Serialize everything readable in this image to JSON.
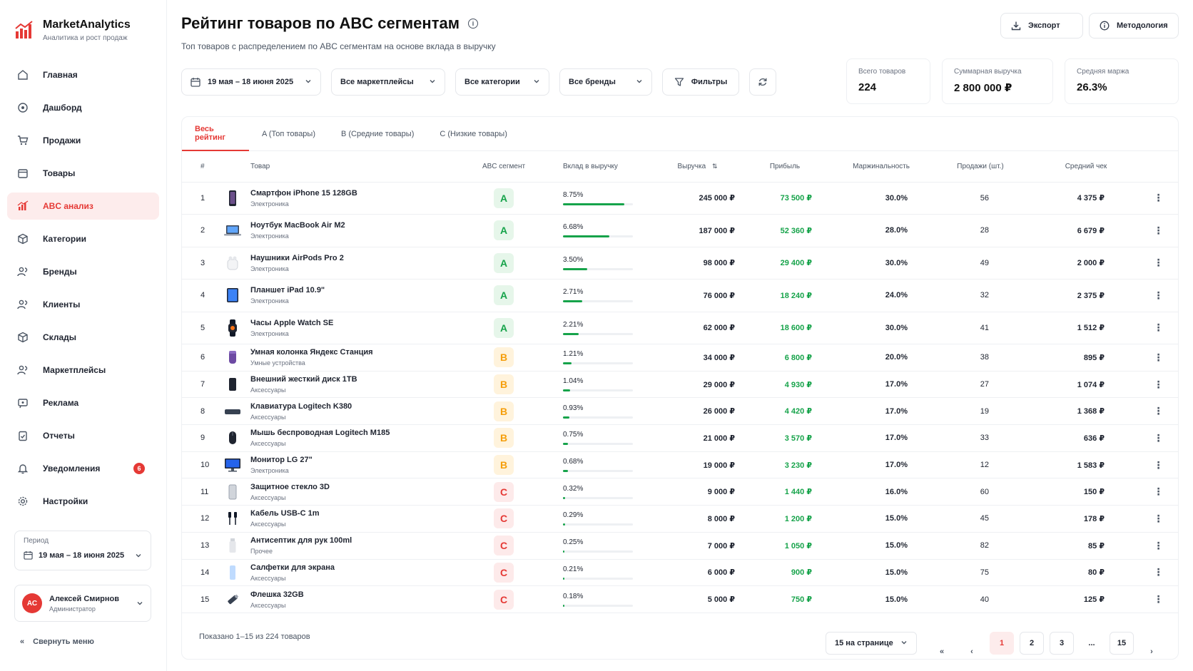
{
  "app": {
    "name": "MarketAnalytics",
    "tagline": "Аналитика и рост продаж"
  },
  "sidebar": {
    "items": [
      {
        "label": "Главная",
        "icon": "home-icon",
        "active": false
      },
      {
        "label": "Дашборд",
        "icon": "dashboard-icon",
        "active": false
      },
      {
        "label": "Продажи",
        "icon": "cart-icon",
        "active": false
      },
      {
        "label": "Товары",
        "icon": "calendar-icon",
        "active": false
      },
      {
        "label": "ABC анализ",
        "icon": "bar-chart-icon",
        "active": true
      },
      {
        "label": "Категории",
        "icon": "box-icon",
        "active": false
      },
      {
        "label": "Бренды",
        "icon": "users-icon",
        "active": false
      },
      {
        "label": "Клиенты",
        "icon": "users-icon",
        "active": false
      },
      {
        "label": "Склады",
        "icon": "box-icon",
        "active": false
      },
      {
        "label": "Маркетплейсы",
        "icon": "users-icon",
        "active": false
      },
      {
        "label": "Реклама",
        "icon": "megaphone-icon",
        "active": false
      },
      {
        "label": "Отчеты",
        "icon": "clipboard-icon",
        "active": false
      },
      {
        "label": "Уведомления",
        "icon": "bell-icon",
        "active": false,
        "badge": "6"
      },
      {
        "label": "Настройки",
        "icon": "gear-icon",
        "active": false
      }
    ],
    "period": {
      "label": "Период",
      "value": "19 мая – 18 июня 2025"
    },
    "user": {
      "initials": "АС",
      "name": "Алексей Смирнов",
      "role": "Администратор"
    },
    "collapse_label": "Свернуть меню"
  },
  "header": {
    "title": "Рейтинг товаров по ABC сегментам",
    "subtitle": "Топ товаров с распределением по ABC сегментам на основе вклада в выручку",
    "export_label": "Экспорт",
    "methodology_label": "Методология"
  },
  "filters": {
    "date": "19 мая – 18 июня 2025",
    "marketplaces": "Все маркетплейсы",
    "categories": "Все категории",
    "brands": "Все бренды",
    "filters_label": "Фильтры"
  },
  "stats": [
    {
      "label": "Всего товаров",
      "value": "224"
    },
    {
      "label": "Суммарная выручка",
      "value": "2 800 000 ₽"
    },
    {
      "label": "Средняя маржа",
      "value": "26.3%"
    }
  ],
  "tabs": [
    "Весь рейтинг",
    "A (Топ товары)",
    "B (Средние товары)",
    "C (Низкие товары)"
  ],
  "table": {
    "columns": [
      "#",
      "Товар",
      "ABC сегмент",
      "Вклад в выручку",
      "Выручка",
      "Прибыль",
      "Маржинальность",
      "Продажи (шт.)",
      "Средний чек"
    ],
    "rows": [
      {
        "num": "1",
        "name": "Смартфон iPhone 15 128GB",
        "category": "Электроника",
        "segment": "A",
        "share": "8.75%",
        "share_pct": 8.75,
        "revenue": "245 000 ₽",
        "profit": "73 500 ₽",
        "margin": "30.0%",
        "sales": "56",
        "avg": "4 375 ₽",
        "icon": "phone-icon"
      },
      {
        "num": "2",
        "name": "Ноутбук MacBook Air M2",
        "category": "Электроника",
        "segment": "A",
        "share": "6.68%",
        "share_pct": 6.68,
        "revenue": "187 000 ₽",
        "profit": "52 360 ₽",
        "margin": "28.0%",
        "sales": "28",
        "avg": "6 679 ₽",
        "icon": "laptop-icon"
      },
      {
        "num": "3",
        "name": "Наушники AirPods Pro 2",
        "category": "Электроника",
        "segment": "A",
        "share": "3.50%",
        "share_pct": 3.5,
        "revenue": "98 000 ₽",
        "profit": "29 400 ₽",
        "margin": "30.0%",
        "sales": "49",
        "avg": "2 000 ₽",
        "icon": "earbuds-icon"
      },
      {
        "num": "4",
        "name": "Планшет iPad 10.9\"",
        "category": "Электроника",
        "segment": "A",
        "share": "2.71%",
        "share_pct": 2.71,
        "revenue": "76 000 ₽",
        "profit": "18 240 ₽",
        "margin": "24.0%",
        "sales": "32",
        "avg": "2 375 ₽",
        "icon": "tablet-icon"
      },
      {
        "num": "5",
        "name": "Часы Apple Watch SE",
        "category": "Электроника",
        "segment": "A",
        "share": "2.21%",
        "share_pct": 2.21,
        "revenue": "62 000 ₽",
        "profit": "18 600 ₽",
        "margin": "30.0%",
        "sales": "41",
        "avg": "1 512 ₽",
        "icon": "watch-icon"
      },
      {
        "num": "6",
        "name": "Умная колонка Яндекс Станция",
        "category": "Умные устройства",
        "segment": "B",
        "share": "1.21%",
        "share_pct": 1.21,
        "revenue": "34 000 ₽",
        "profit": "6 800 ₽",
        "margin": "20.0%",
        "sales": "38",
        "avg": "895 ₽",
        "icon": "speaker-icon"
      },
      {
        "num": "7",
        "name": "Внешний жесткий диск 1TB",
        "category": "Аксессуары",
        "segment": "B",
        "share": "1.04%",
        "share_pct": 1.04,
        "revenue": "29 000 ₽",
        "profit": "4 930 ₽",
        "margin": "17.0%",
        "sales": "27",
        "avg": "1 074 ₽",
        "icon": "hdd-icon"
      },
      {
        "num": "8",
        "name": "Клавиатура Logitech K380",
        "category": "Аксессуары",
        "segment": "B",
        "share": "0.93%",
        "share_pct": 0.93,
        "revenue": "26 000 ₽",
        "profit": "4 420 ₽",
        "margin": "17.0%",
        "sales": "19",
        "avg": "1 368 ₽",
        "icon": "keyboard-icon"
      },
      {
        "num": "9",
        "name": "Мышь беспроводная Logitech M185",
        "category": "Аксессуары",
        "segment": "B",
        "share": "0.75%",
        "share_pct": 0.75,
        "revenue": "21 000 ₽",
        "profit": "3 570 ₽",
        "margin": "17.0%",
        "sales": "33",
        "avg": "636 ₽",
        "icon": "mouse-icon"
      },
      {
        "num": "10",
        "name": "Монитор LG 27\"",
        "category": "Электроника",
        "segment": "B",
        "share": "0.68%",
        "share_pct": 0.68,
        "revenue": "19 000 ₽",
        "profit": "3 230 ₽",
        "margin": "17.0%",
        "sales": "12",
        "avg": "1 583 ₽",
        "icon": "monitor-icon"
      },
      {
        "num": "11",
        "name": "Защитное стекло 3D",
        "category": "Аксессуары",
        "segment": "C",
        "share": "0.32%",
        "share_pct": 0.32,
        "revenue": "9 000 ₽",
        "profit": "1 440 ₽",
        "margin": "16.0%",
        "sales": "60",
        "avg": "150 ₽",
        "icon": "glass-icon"
      },
      {
        "num": "12",
        "name": "Кабель USB-C 1m",
        "category": "Аксессуары",
        "segment": "C",
        "share": "0.29%",
        "share_pct": 0.29,
        "revenue": "8 000 ₽",
        "profit": "1 200 ₽",
        "margin": "15.0%",
        "sales": "45",
        "avg": "178 ₽",
        "icon": "cable-icon"
      },
      {
        "num": "13",
        "name": "Антисептик для рук 100ml",
        "category": "Прочее",
        "segment": "C",
        "share": "0.25%",
        "share_pct": 0.25,
        "revenue": "7 000 ₽",
        "profit": "1 050 ₽",
        "margin": "15.0%",
        "sales": "82",
        "avg": "85 ₽",
        "icon": "bottle-icon"
      },
      {
        "num": "14",
        "name": "Салфетки для экрана",
        "category": "Аксессуары",
        "segment": "C",
        "share": "0.21%",
        "share_pct": 0.21,
        "revenue": "6 000 ₽",
        "profit": "900 ₽",
        "margin": "15.0%",
        "sales": "75",
        "avg": "80 ₽",
        "icon": "wipes-icon"
      },
      {
        "num": "15",
        "name": "Флешка 32GB",
        "category": "Аксессуары",
        "segment": "C",
        "share": "0.18%",
        "share_pct": 0.18,
        "revenue": "5 000 ₽",
        "profit": "750 ₽",
        "margin": "15.0%",
        "sales": "40",
        "avg": "125 ₽",
        "icon": "usb-stick-icon"
      }
    ]
  },
  "footer": {
    "shown_text": "Показано 1–15 из 224 товаров",
    "per_page": "15 на странице",
    "pages": [
      "1",
      "2",
      "3",
      "...",
      "15"
    ],
    "current_page": "1"
  },
  "colors": {
    "accent": "#e53935",
    "positive": "#16a34a",
    "segment_b": "#f59e0b"
  }
}
